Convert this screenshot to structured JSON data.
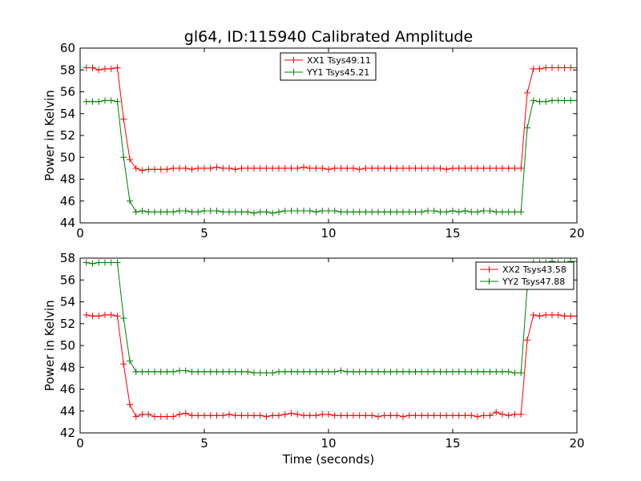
{
  "chart_data": [
    {
      "type": "line",
      "title": "gl64, ID:115940 Calibrated Amplitude",
      "xlabel": "",
      "ylabel": "Power in Kelvin",
      "xlim": [
        0,
        20
      ],
      "ylim": [
        44,
        60
      ],
      "xticks": [
        "0",
        "5",
        "10",
        "15",
        "20"
      ],
      "yticks": [
        "44",
        "46",
        "48",
        "50",
        "52",
        "54",
        "56",
        "58",
        "60"
      ],
      "legend_position": "upper-center",
      "x": [
        0.25,
        0.5,
        0.75,
        1.0,
        1.25,
        1.5,
        1.75,
        2.0,
        2.25,
        2.5,
        2.75,
        3.0,
        3.25,
        3.5,
        3.75,
        4.0,
        4.25,
        4.5,
        4.75,
        5.0,
        5.25,
        5.5,
        5.75,
        6.0,
        6.25,
        6.5,
        6.75,
        7.0,
        7.25,
        7.5,
        7.75,
        8.0,
        8.25,
        8.5,
        8.75,
        9.0,
        9.25,
        9.5,
        9.75,
        10.0,
        10.25,
        10.5,
        10.75,
        11.0,
        11.25,
        11.5,
        11.75,
        12.0,
        12.25,
        12.5,
        12.75,
        13.0,
        13.25,
        13.5,
        13.75,
        14.0,
        14.25,
        14.5,
        14.75,
        15.0,
        15.25,
        15.5,
        15.75,
        16.0,
        16.25,
        16.5,
        16.75,
        17.0,
        17.25,
        17.5,
        17.75,
        18.0,
        18.25,
        18.5,
        18.75,
        19.0,
        19.25,
        19.5,
        19.75,
        20.0
      ],
      "series": [
        {
          "name": "XX1 Tsys49.11",
          "color": "#ff0000",
          "values": [
            58.2,
            58.2,
            58.0,
            58.1,
            58.1,
            58.2,
            53.5,
            49.8,
            49.0,
            48.8,
            48.9,
            48.9,
            48.9,
            48.9,
            49.0,
            49.0,
            49.0,
            48.9,
            49.0,
            49.0,
            49.0,
            49.1,
            49.0,
            49.0,
            48.9,
            49.0,
            49.0,
            49.0,
            49.0,
            49.0,
            49.0,
            49.0,
            49.0,
            49.0,
            49.0,
            49.1,
            49.0,
            49.0,
            49.0,
            48.9,
            49.0,
            49.0,
            49.0,
            49.0,
            48.9,
            49.0,
            49.0,
            49.0,
            49.0,
            49.0,
            49.0,
            49.0,
            49.0,
            49.0,
            49.0,
            49.0,
            49.0,
            49.0,
            48.9,
            49.0,
            49.0,
            49.0,
            49.0,
            49.0,
            49.0,
            49.0,
            49.0,
            49.0,
            49.0,
            49.0,
            49.0,
            55.9,
            58.1,
            58.1,
            58.2,
            58.2,
            58.2,
            58.2,
            58.2,
            58.2
          ]
        },
        {
          "name": "YY1 Tsys45.21",
          "color": "#008000",
          "values": [
            55.1,
            55.1,
            55.1,
            55.2,
            55.2,
            55.1,
            50.0,
            46.0,
            45.0,
            45.1,
            45.0,
            45.0,
            45.0,
            45.0,
            45.0,
            45.1,
            45.1,
            45.0,
            45.0,
            45.1,
            45.1,
            45.1,
            45.0,
            45.0,
            45.0,
            45.0,
            45.0,
            44.9,
            45.0,
            45.0,
            44.9,
            45.0,
            45.1,
            45.1,
            45.1,
            45.1,
            45.1,
            45.0,
            45.1,
            45.1,
            45.1,
            45.0,
            45.0,
            45.0,
            45.0,
            45.0,
            45.0,
            45.0,
            45.0,
            45.0,
            45.0,
            45.0,
            45.0,
            45.0,
            45.0,
            45.1,
            45.1,
            45.0,
            45.0,
            45.1,
            45.0,
            45.1,
            45.0,
            45.0,
            45.1,
            45.1,
            45.0,
            45.0,
            45.0,
            45.0,
            45.0,
            52.7,
            55.2,
            55.1,
            55.1,
            55.2,
            55.2,
            55.2,
            55.2,
            55.2
          ]
        }
      ]
    },
    {
      "type": "line",
      "title": "",
      "xlabel": "Time (seconds)",
      "ylabel": "Power in Kelvin",
      "xlim": [
        0,
        20
      ],
      "ylim": [
        42,
        58
      ],
      "xticks": [
        "0",
        "5",
        "10",
        "15",
        "20"
      ],
      "yticks": [
        "42",
        "44",
        "46",
        "48",
        "50",
        "52",
        "54",
        "56",
        "58"
      ],
      "legend_position": "upper-right",
      "x": [
        0.25,
        0.5,
        0.75,
        1.0,
        1.25,
        1.5,
        1.75,
        2.0,
        2.25,
        2.5,
        2.75,
        3.0,
        3.25,
        3.5,
        3.75,
        4.0,
        4.25,
        4.5,
        4.75,
        5.0,
        5.25,
        5.5,
        5.75,
        6.0,
        6.25,
        6.5,
        6.75,
        7.0,
        7.25,
        7.5,
        7.75,
        8.0,
        8.25,
        8.5,
        8.75,
        9.0,
        9.25,
        9.5,
        9.75,
        10.0,
        10.25,
        10.5,
        10.75,
        11.0,
        11.25,
        11.5,
        11.75,
        12.0,
        12.25,
        12.5,
        12.75,
        13.0,
        13.25,
        13.5,
        13.75,
        14.0,
        14.25,
        14.5,
        14.75,
        15.0,
        15.25,
        15.5,
        15.75,
        16.0,
        16.25,
        16.5,
        16.75,
        17.0,
        17.25,
        17.5,
        17.75,
        18.0,
        18.25,
        18.5,
        18.75,
        19.0,
        19.25,
        19.5,
        19.75,
        20.0
      ],
      "series": [
        {
          "name": "XX2 Tsys43.58",
          "color": "#ff0000",
          "values": [
            52.8,
            52.7,
            52.7,
            52.8,
            52.8,
            52.7,
            48.3,
            44.6,
            43.5,
            43.7,
            43.7,
            43.5,
            43.5,
            43.5,
            43.5,
            43.7,
            43.8,
            43.6,
            43.6,
            43.6,
            43.6,
            43.6,
            43.6,
            43.7,
            43.6,
            43.6,
            43.6,
            43.6,
            43.6,
            43.5,
            43.6,
            43.6,
            43.7,
            43.8,
            43.7,
            43.6,
            43.6,
            43.6,
            43.7,
            43.7,
            43.6,
            43.6,
            43.6,
            43.6,
            43.6,
            43.6,
            43.6,
            43.5,
            43.6,
            43.6,
            43.6,
            43.5,
            43.6,
            43.6,
            43.6,
            43.6,
            43.6,
            43.6,
            43.6,
            43.6,
            43.6,
            43.6,
            43.6,
            43.5,
            43.6,
            43.6,
            43.9,
            43.7,
            43.6,
            43.7,
            43.7,
            50.5,
            52.8,
            52.7,
            52.8,
            52.8,
            52.8,
            52.7,
            52.7,
            52.7
          ]
        },
        {
          "name": "YY2 Tsys47.88",
          "color": "#008000",
          "values": [
            57.6,
            57.5,
            57.6,
            57.6,
            57.6,
            57.6,
            52.5,
            48.6,
            47.6,
            47.6,
            47.6,
            47.6,
            47.6,
            47.6,
            47.6,
            47.7,
            47.7,
            47.6,
            47.6,
            47.6,
            47.6,
            47.6,
            47.6,
            47.6,
            47.6,
            47.6,
            47.6,
            47.5,
            47.5,
            47.5,
            47.5,
            47.6,
            47.6,
            47.6,
            47.6,
            47.6,
            47.6,
            47.6,
            47.6,
            47.6,
            47.6,
            47.7,
            47.6,
            47.6,
            47.6,
            47.6,
            47.6,
            47.6,
            47.6,
            47.6,
            47.6,
            47.6,
            47.6,
            47.6,
            47.6,
            47.6,
            47.6,
            47.6,
            47.6,
            47.6,
            47.6,
            47.6,
            47.6,
            47.6,
            47.6,
            47.6,
            47.6,
            47.6,
            47.6,
            47.5,
            47.5,
            55.3,
            57.6,
            57.6,
            57.6,
            57.7,
            57.6,
            57.6,
            57.7,
            57.7
          ]
        }
      ]
    }
  ]
}
